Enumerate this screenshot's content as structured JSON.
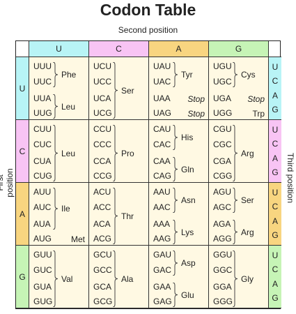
{
  "title": "Codon Table",
  "axis": {
    "second": "Second position",
    "first": "First position",
    "third": "Third position"
  },
  "bases": [
    "U",
    "C",
    "A",
    "G"
  ],
  "colors": {
    "U": "#b8f4f6",
    "C": "#f8c4f4",
    "A": "#f8d580",
    "G": "#c6f4b6",
    "block": "#fff9e3"
  },
  "rows": [
    {
      "first": "U",
      "blocks": [
        {
          "codons": [
            "UUU",
            "UUC",
            "UUA",
            "UUG"
          ],
          "groups": [
            {
              "start": 0,
              "end": 1,
              "aa": "Phe"
            },
            {
              "start": 2,
              "end": 3,
              "aa": "Leu"
            }
          ]
        },
        {
          "codons": [
            "UCU",
            "UCC",
            "UCA",
            "UCG"
          ],
          "groups": [
            {
              "start": 0,
              "end": 3,
              "aa": "Ser"
            }
          ]
        },
        {
          "codons": [
            "UAU",
            "UAC",
            "UAA",
            "UAG"
          ],
          "groups": [
            {
              "start": 0,
              "end": 1,
              "aa": "Tyr"
            },
            {
              "start": 2,
              "end": 2,
              "aa": "Stop",
              "style": "italic"
            },
            {
              "start": 3,
              "end": 3,
              "aa": "Stop",
              "style": "italic"
            }
          ]
        },
        {
          "codons": [
            "UGU",
            "UGC",
            "UGA",
            "UGG"
          ],
          "groups": [
            {
              "start": 0,
              "end": 1,
              "aa": "Cys"
            },
            {
              "start": 2,
              "end": 2,
              "aa": "Stop",
              "style": "italic"
            },
            {
              "start": 3,
              "end": 3,
              "aa": "Trp"
            }
          ]
        }
      ]
    },
    {
      "first": "C",
      "blocks": [
        {
          "codons": [
            "CUU",
            "CUC",
            "CUA",
            "CUG"
          ],
          "groups": [
            {
              "start": 0,
              "end": 3,
              "aa": "Leu"
            }
          ]
        },
        {
          "codons": [
            "CCU",
            "CCC",
            "CCA",
            "CCG"
          ],
          "groups": [
            {
              "start": 0,
              "end": 3,
              "aa": "Pro"
            }
          ]
        },
        {
          "codons": [
            "CAU",
            "CAC",
            "CAA",
            "CAG"
          ],
          "groups": [
            {
              "start": 0,
              "end": 1,
              "aa": "His"
            },
            {
              "start": 2,
              "end": 3,
              "aa": "Gln"
            }
          ]
        },
        {
          "codons": [
            "CGU",
            "CGC",
            "CGA",
            "CGG"
          ],
          "groups": [
            {
              "start": 0,
              "end": 3,
              "aa": "Arg"
            }
          ]
        }
      ]
    },
    {
      "first": "A",
      "blocks": [
        {
          "codons": [
            "AUU",
            "AUC",
            "AUA",
            "AUG"
          ],
          "groups": [
            {
              "start": 0,
              "end": 2,
              "aa": "Ile"
            },
            {
              "start": 3,
              "end": 3,
              "aa": "Met"
            }
          ]
        },
        {
          "codons": [
            "ACU",
            "ACC",
            "ACA",
            "ACG"
          ],
          "groups": [
            {
              "start": 0,
              "end": 3,
              "aa": "Thr"
            }
          ]
        },
        {
          "codons": [
            "AAU",
            "AAC",
            "AAA",
            "AAG"
          ],
          "groups": [
            {
              "start": 0,
              "end": 1,
              "aa": "Asn"
            },
            {
              "start": 2,
              "end": 3,
              "aa": "Lys"
            }
          ]
        },
        {
          "codons": [
            "AGU",
            "AGC",
            "AGA",
            "AGG"
          ],
          "groups": [
            {
              "start": 0,
              "end": 1,
              "aa": "Ser"
            },
            {
              "start": 2,
              "end": 3,
              "aa": "Arg"
            }
          ]
        }
      ]
    },
    {
      "first": "G",
      "blocks": [
        {
          "codons": [
            "GUU",
            "GUC",
            "GUA",
            "GUG"
          ],
          "groups": [
            {
              "start": 0,
              "end": 3,
              "aa": "Val"
            }
          ]
        },
        {
          "codons": [
            "GCU",
            "GCC",
            "GCA",
            "GCG"
          ],
          "groups": [
            {
              "start": 0,
              "end": 3,
              "aa": "Ala"
            }
          ]
        },
        {
          "codons": [
            "GAU",
            "GAC",
            "GAA",
            "GAG"
          ],
          "groups": [
            {
              "start": 0,
              "end": 1,
              "aa": "Asp"
            },
            {
              "start": 2,
              "end": 3,
              "aa": "Glu"
            }
          ]
        },
        {
          "codons": [
            "GGU",
            "GGC",
            "GGA",
            "GGG"
          ],
          "groups": [
            {
              "start": 0,
              "end": 3,
              "aa": "Gly"
            }
          ]
        }
      ]
    }
  ],
  "third_letters": [
    "U",
    "C",
    "A",
    "G"
  ]
}
